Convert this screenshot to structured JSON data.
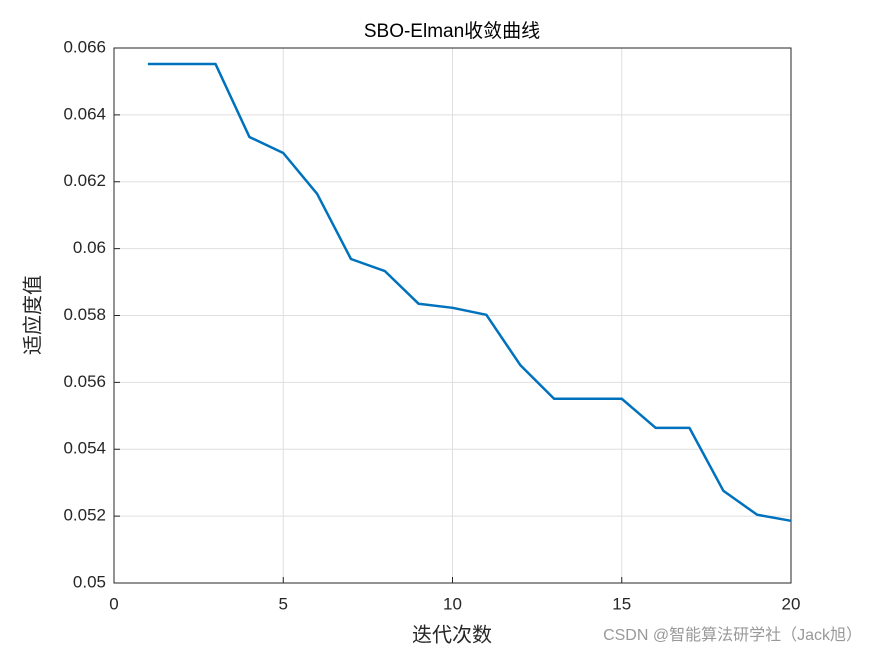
{
  "chart_data": {
    "type": "line",
    "title": "SBO-Elman收敛曲线",
    "x_label": "迭代次数",
    "y_label": "适应度值",
    "x": [
      1,
      2,
      3,
      4,
      5,
      6,
      7,
      8,
      9,
      10,
      11,
      12,
      13,
      14,
      15,
      16,
      17,
      18,
      19,
      20
    ],
    "series": [
      {
        "name": "SBO-Elman",
        "color": "#0072bd",
        "values": [
          0.06552,
          0.06552,
          0.06552,
          0.06334,
          0.06286,
          0.06164,
          0.05969,
          0.05933,
          0.05835,
          0.05823,
          0.05802,
          0.05652,
          0.05551,
          0.05551,
          0.05551,
          0.05464,
          0.05464,
          0.05276,
          0.05204,
          0.05186
        ]
      }
    ],
    "xlim": [
      0,
      20
    ],
    "xticks": [
      0,
      5,
      10,
      15,
      20
    ],
    "ylim": [
      0.05,
      0.066
    ],
    "yticks": [
      0.05,
      0.052,
      0.054,
      0.056,
      0.058,
      0.06,
      0.062,
      0.064,
      0.066
    ],
    "grid": true,
    "watermark": "CSDN @智能算法研学社（Jack旭）"
  }
}
